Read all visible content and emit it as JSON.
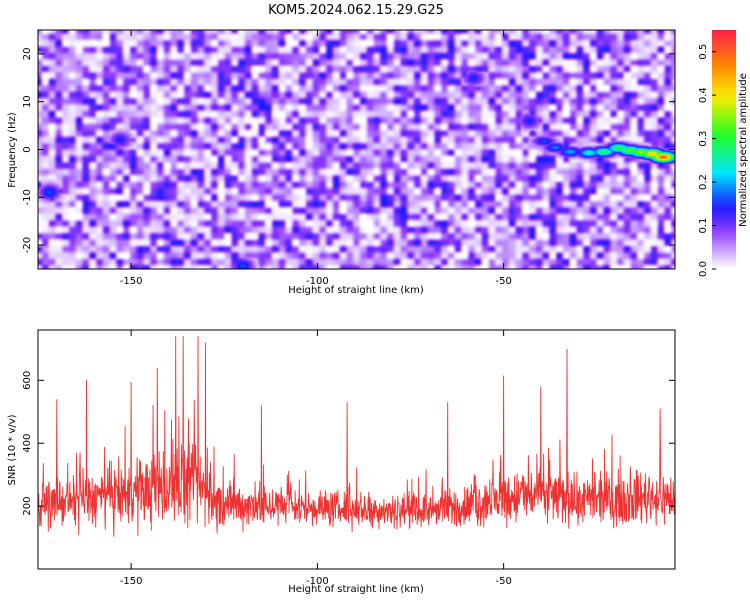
{
  "title": "KOM5.2024.062.15.29.G25",
  "chart_data": [
    {
      "type": "heatmap",
      "xlabel": "Height of straight line (km)",
      "ylabel": "Frequency (Hz)",
      "xlim": [
        -175,
        -4
      ],
      "ylim": [
        -25,
        25
      ],
      "xticks": [
        -150,
        -100,
        -50
      ],
      "yticks": [
        20,
        10,
        0,
        -10,
        -20
      ],
      "colorbar": {
        "label": "Normalized spectral amplitude",
        "range": [
          0.0,
          0.55
        ],
        "ticks": [
          "0.0",
          "0.1",
          "0.2",
          "0.3",
          "0.4",
          "0.5"
        ],
        "colors": [
          "#ffffff",
          "#8f3bff",
          "#1a1aff",
          "#00e5ff",
          "#22ff22",
          "#ffee00",
          "#ff8800",
          "#ff1f4a"
        ]
      },
      "noise_level": 0.07,
      "features": [
        {
          "x": -172,
          "y": -9,
          "amp": 0.16
        },
        {
          "x": -120,
          "y": -24.5,
          "amp": 0.16
        },
        {
          "x": -153,
          "y": 2,
          "amp": 0.14
        },
        {
          "x": -58,
          "y": 15,
          "amp": 0.14
        },
        {
          "x": -43,
          "y": 6,
          "amp": 0.14
        }
      ],
      "ridge": [
        {
          "x": -39,
          "y": 1.7,
          "amp": 0.16
        },
        {
          "x": -36,
          "y": 0.4,
          "amp": 0.18
        },
        {
          "x": -32,
          "y": -0.5,
          "amp": 0.2
        },
        {
          "x": -27,
          "y": -0.7,
          "amp": 0.24
        },
        {
          "x": -23,
          "y": -0.5,
          "amp": 0.28
        },
        {
          "x": -19,
          "y": 0.3,
          "amp": 0.3
        },
        {
          "x": -16,
          "y": -0.2,
          "amp": 0.33
        },
        {
          "x": -13,
          "y": -0.6,
          "amp": 0.36
        },
        {
          "x": -10,
          "y": -0.9,
          "amp": 0.42
        },
        {
          "x": -7,
          "y": -1.6,
          "amp": 0.5
        }
      ]
    },
    {
      "type": "line",
      "xlabel": "Height of straight line (km)",
      "ylabel": "SNR (10 * v/v)",
      "xlim": [
        -175,
        -4
      ],
      "ylim": [
        0,
        760
      ],
      "xticks": [
        -150,
        -100,
        -50
      ],
      "yticks": [
        200,
        400,
        600
      ],
      "series": [
        {
          "color": "#ee3333",
          "profile": [
            {
              "x": -175,
              "mean": 200,
              "spread": 80
            },
            {
              "x": -165,
              "mean": 215,
              "spread": 90
            },
            {
              "x": -155,
              "mean": 230,
              "spread": 110
            },
            {
              "x": -145,
              "mean": 250,
              "spread": 130
            },
            {
              "x": -135,
              "mean": 270,
              "spread": 150
            },
            {
              "x": -130,
              "mean": 250,
              "spread": 140
            },
            {
              "x": -127,
              "mean": 205,
              "spread": 90
            },
            {
              "x": -110,
              "mean": 200,
              "spread": 75
            },
            {
              "x": -90,
              "mean": 190,
              "spread": 65
            },
            {
              "x": -70,
              "mean": 185,
              "spread": 60
            },
            {
              "x": -60,
              "mean": 200,
              "spread": 80
            },
            {
              "x": -50,
              "mean": 225,
              "spread": 100
            },
            {
              "x": -40,
              "mean": 240,
              "spread": 110
            },
            {
              "x": -30,
              "mean": 215,
              "spread": 90
            },
            {
              "x": -20,
              "mean": 220,
              "spread": 95
            },
            {
              "x": -10,
              "mean": 230,
              "spread": 100
            },
            {
              "x": -4,
              "mean": 225,
              "spread": 95
            }
          ],
          "peaks": [
            {
              "x": -170,
              "y": 540
            },
            {
              "x": -162,
              "y": 600
            },
            {
              "x": -150,
              "y": 595
            },
            {
              "x": -143,
              "y": 640
            },
            {
              "x": -138,
              "y": 740
            },
            {
              "x": -136,
              "y": 740
            },
            {
              "x": -132,
              "y": 740
            },
            {
              "x": -130,
              "y": 720
            },
            {
              "x": -115,
              "y": 520
            },
            {
              "x": -92,
              "y": 530
            },
            {
              "x": -65,
              "y": 530
            },
            {
              "x": -50,
              "y": 615
            },
            {
              "x": -40,
              "y": 580
            },
            {
              "x": -33,
              "y": 700
            },
            {
              "x": -8,
              "y": 510
            }
          ]
        }
      ]
    }
  ]
}
